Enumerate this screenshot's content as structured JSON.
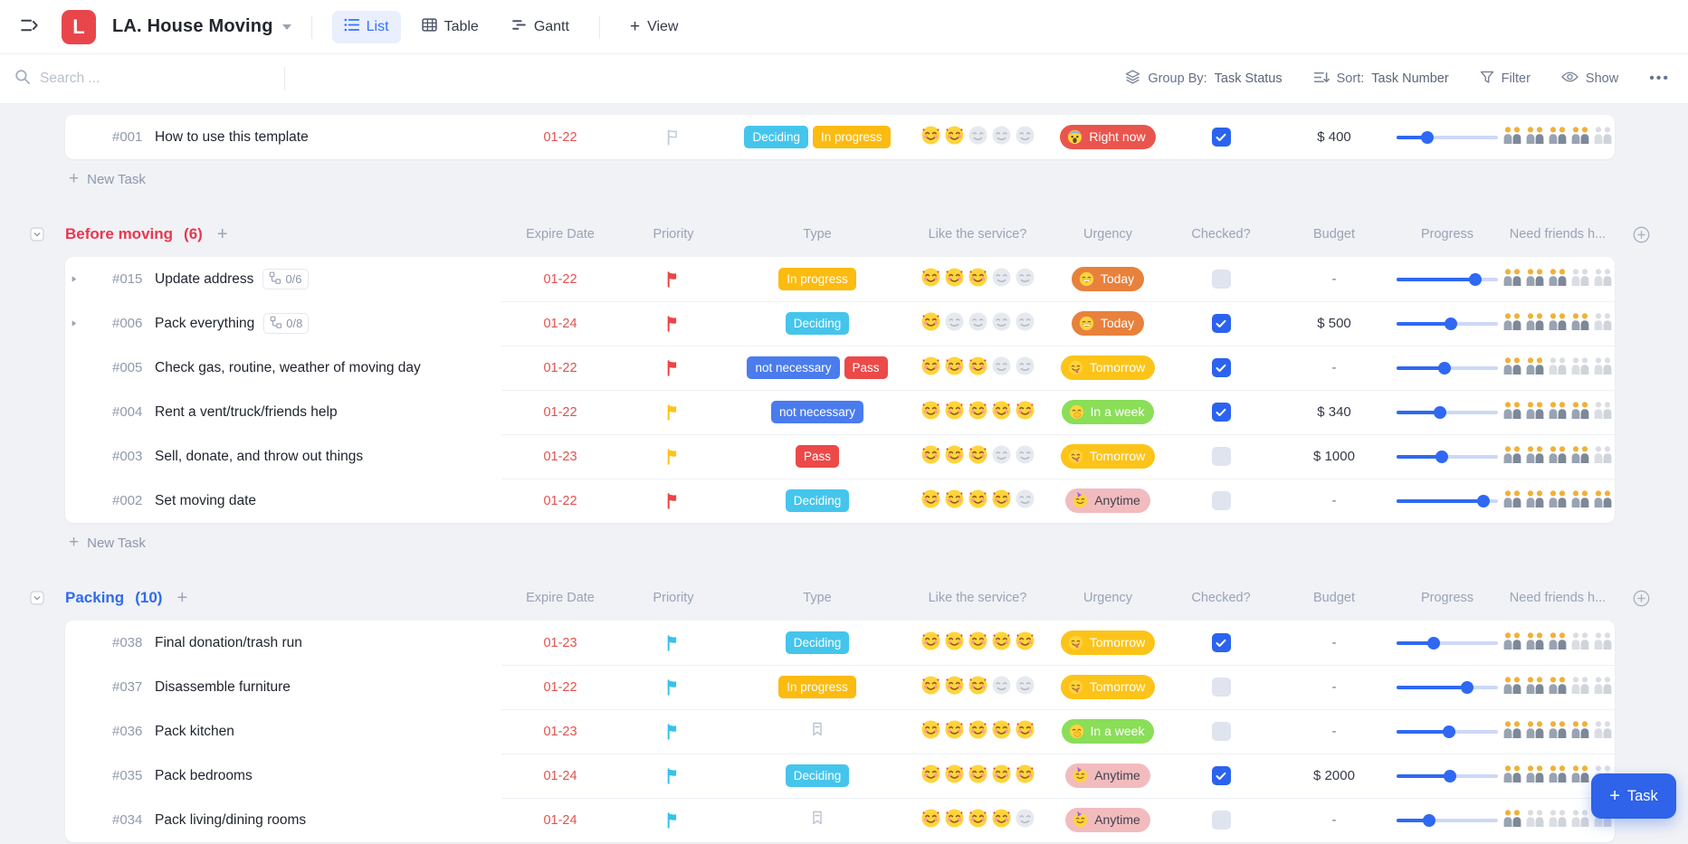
{
  "header": {
    "title": "LA. House Moving",
    "logo_letter": "L",
    "tabs": [
      {
        "label": "List",
        "active": true
      },
      {
        "label": "Table",
        "active": false
      },
      {
        "label": "Gantt",
        "active": false
      }
    ],
    "view_label": "View"
  },
  "toolbar": {
    "search_placeholder": "Search ...",
    "group_by_label": "Group By:",
    "group_by_value": "Task Status",
    "sort_label": "Sort:",
    "sort_value": "Task Number",
    "filter_label": "Filter",
    "show_label": "Show",
    "more_label": "•••"
  },
  "columns": [
    "Expire Date",
    "Priority",
    "Type",
    "Like the service?",
    "Urgency",
    "Checked?",
    "Budget",
    "Progress",
    "Need friends h..."
  ],
  "new_task_label": "New Task",
  "task_button_label": "Task",
  "icons": {
    "sidebar-toggle-icon": "two lines + right chevron",
    "search-icon": "magnifier",
    "group-by-icon": "layers",
    "sort-icon": "lines with down arrow",
    "filter-icon": "funnel",
    "show-icon": "eye",
    "more-icon": "ellipsis",
    "flag-icon": "priority flag",
    "bookmark-icon": "empty type bookmark",
    "subtask-icon": "subtask tree",
    "rating-icon": "smiling face with hearts emoji",
    "friends-icon": "two people holding hands emoji",
    "add-column-icon": "circle plus"
  },
  "colors": {
    "accent_blue": "#3470ff",
    "logo_red": "#e8464a",
    "section_red": "#e8384f",
    "section_blue": "#2f6bec",
    "date_red": "#e0524e",
    "progress_blue": "#2f68f2",
    "checkbox_checked": "#2b63f0",
    "checkbox_unchecked": "#dfe4ee",
    "badge_deciding": "#45c5ec",
    "badge_in_progress": "#fbbb10",
    "badge_not_necessary": "#4a7cee",
    "badge_pass": "#ec4949",
    "urgency_right_now": "#e9554d",
    "urgency_today": "#e8813c",
    "urgency_tomorrow": "#fcc419",
    "urgency_in_a_week": "#8ade58",
    "urgency_anytime": "#f2bcbf",
    "flag_red": "#ee4444",
    "flag_yellow": "#fcc419",
    "flag_cyan": "#39c1ec",
    "flag_gray": "#c3ccd9",
    "bullet_red": "#e8384f",
    "bullet_blue": "#3e6ded",
    "bullet_gray": "#dfe4ec"
  },
  "groups": [
    {
      "name": null,
      "count": null,
      "show_new_task": true,
      "show_columns": false,
      "rows": [
        {
          "id": "#001",
          "title": "How to use this template",
          "bullet": "gray",
          "expand": false,
          "subtasks": null,
          "date": "01-22",
          "flag": "gray",
          "types": [
            "Deciding",
            "In progress"
          ],
          "rating": 2,
          "rating_max": 5,
          "urgency": "Right now",
          "checked": true,
          "budget": "$ 400",
          "progress": 30,
          "friends": 4,
          "friends_max": 5
        }
      ]
    },
    {
      "name": "Before moving",
      "count": 6,
      "color_key": "section_red",
      "show_new_task": true,
      "show_columns": true,
      "rows": [
        {
          "id": "#015",
          "title": "Update address",
          "bullet": "red",
          "expand": true,
          "subtasks": "0/6",
          "date": "01-22",
          "flag": "red",
          "types": [
            "In progress"
          ],
          "rating": 3,
          "rating_max": 5,
          "urgency": "Today",
          "checked": false,
          "budget": "-",
          "progress": 78,
          "friends": 3,
          "friends_max": 5
        },
        {
          "id": "#006",
          "title": "Pack everything",
          "bullet": "red",
          "expand": true,
          "subtasks": "0/8",
          "date": "01-24",
          "flag": "red",
          "types": [
            "Deciding"
          ],
          "rating": 1,
          "rating_max": 5,
          "urgency": "Today",
          "checked": true,
          "budget": "$ 500",
          "progress": 54,
          "friends": 4,
          "friends_max": 5
        },
        {
          "id": "#005",
          "title": "Check gas, routine, weather of moving day",
          "bullet": "red",
          "expand": false,
          "subtasks": null,
          "date": "01-22",
          "flag": "red",
          "types": [
            "not necessary",
            "Pass"
          ],
          "rating": 3,
          "rating_max": 5,
          "urgency": "Tomorrow",
          "checked": true,
          "budget": "-",
          "progress": 47,
          "friends": 2,
          "friends_max": 5
        },
        {
          "id": "#004",
          "title": "Rent a vent/truck/friends help",
          "bullet": "red",
          "expand": false,
          "subtasks": null,
          "date": "01-22",
          "flag": "yellow",
          "types": [
            "not necessary"
          ],
          "rating": 5,
          "rating_max": 5,
          "urgency": "In a week",
          "checked": true,
          "budget": "$ 340",
          "progress": 43,
          "friends": 4,
          "friends_max": 5
        },
        {
          "id": "#003",
          "title": "Sell, donate, and throw out things",
          "bullet": "red",
          "expand": false,
          "subtasks": null,
          "date": "01-23",
          "flag": "yellow",
          "types": [
            "Pass"
          ],
          "rating": 3,
          "rating_max": 5,
          "urgency": "Tomorrow",
          "checked": false,
          "budget": "$ 1000",
          "progress": 45,
          "friends": 4,
          "friends_max": 5
        },
        {
          "id": "#002",
          "title": "Set moving date",
          "bullet": "red",
          "expand": false,
          "subtasks": null,
          "date": "01-22",
          "flag": "red",
          "types": [
            "Deciding"
          ],
          "rating": 4,
          "rating_max": 5,
          "urgency": "Anytime",
          "checked": false,
          "budget": "-",
          "progress": 86,
          "friends": 5,
          "friends_max": 5
        }
      ]
    },
    {
      "name": "Packing",
      "count": 10,
      "color_key": "section_blue",
      "show_new_task": false,
      "show_columns": true,
      "rows": [
        {
          "id": "#038",
          "title": "Final donation/trash run",
          "bullet": "blue",
          "expand": false,
          "subtasks": null,
          "date": "01-23",
          "flag": "cyan",
          "types": [
            "Deciding"
          ],
          "rating": 5,
          "rating_max": 5,
          "urgency": "Tomorrow",
          "checked": true,
          "budget": "-",
          "progress": 37,
          "friends": 3,
          "friends_max": 5
        },
        {
          "id": "#037",
          "title": "Disassemble furniture",
          "bullet": "blue",
          "expand": false,
          "subtasks": null,
          "date": "01-22",
          "flag": "cyan",
          "types": [
            "In progress"
          ],
          "rating": 3,
          "rating_max": 5,
          "urgency": "Tomorrow",
          "checked": false,
          "budget": "-",
          "progress": 70,
          "friends": 3,
          "friends_max": 5
        },
        {
          "id": "#036",
          "title": "Pack kitchen",
          "bullet": "blue",
          "expand": false,
          "subtasks": null,
          "date": "01-23",
          "flag": "cyan",
          "types": [],
          "rating": 5,
          "rating_max": 5,
          "urgency": "In a week",
          "checked": false,
          "budget": "-",
          "progress": 52,
          "friends": 4,
          "friends_max": 5
        },
        {
          "id": "#035",
          "title": "Pack bedrooms",
          "bullet": "blue",
          "expand": false,
          "subtasks": null,
          "date": "01-24",
          "flag": "cyan",
          "types": [
            "Deciding"
          ],
          "rating": 5,
          "rating_max": 5,
          "urgency": "Anytime",
          "checked": true,
          "budget": "$ 2000",
          "progress": 53,
          "friends": 4,
          "friends_max": 5
        },
        {
          "id": "#034",
          "title": "Pack living/dining rooms",
          "bullet": "blue",
          "expand": false,
          "subtasks": null,
          "date": "01-24",
          "flag": "cyan",
          "types": [],
          "rating": 4,
          "rating_max": 5,
          "urgency": "Anytime",
          "checked": false,
          "budget": "-",
          "progress": 32,
          "friends": 1,
          "friends_max": 5
        }
      ]
    }
  ]
}
